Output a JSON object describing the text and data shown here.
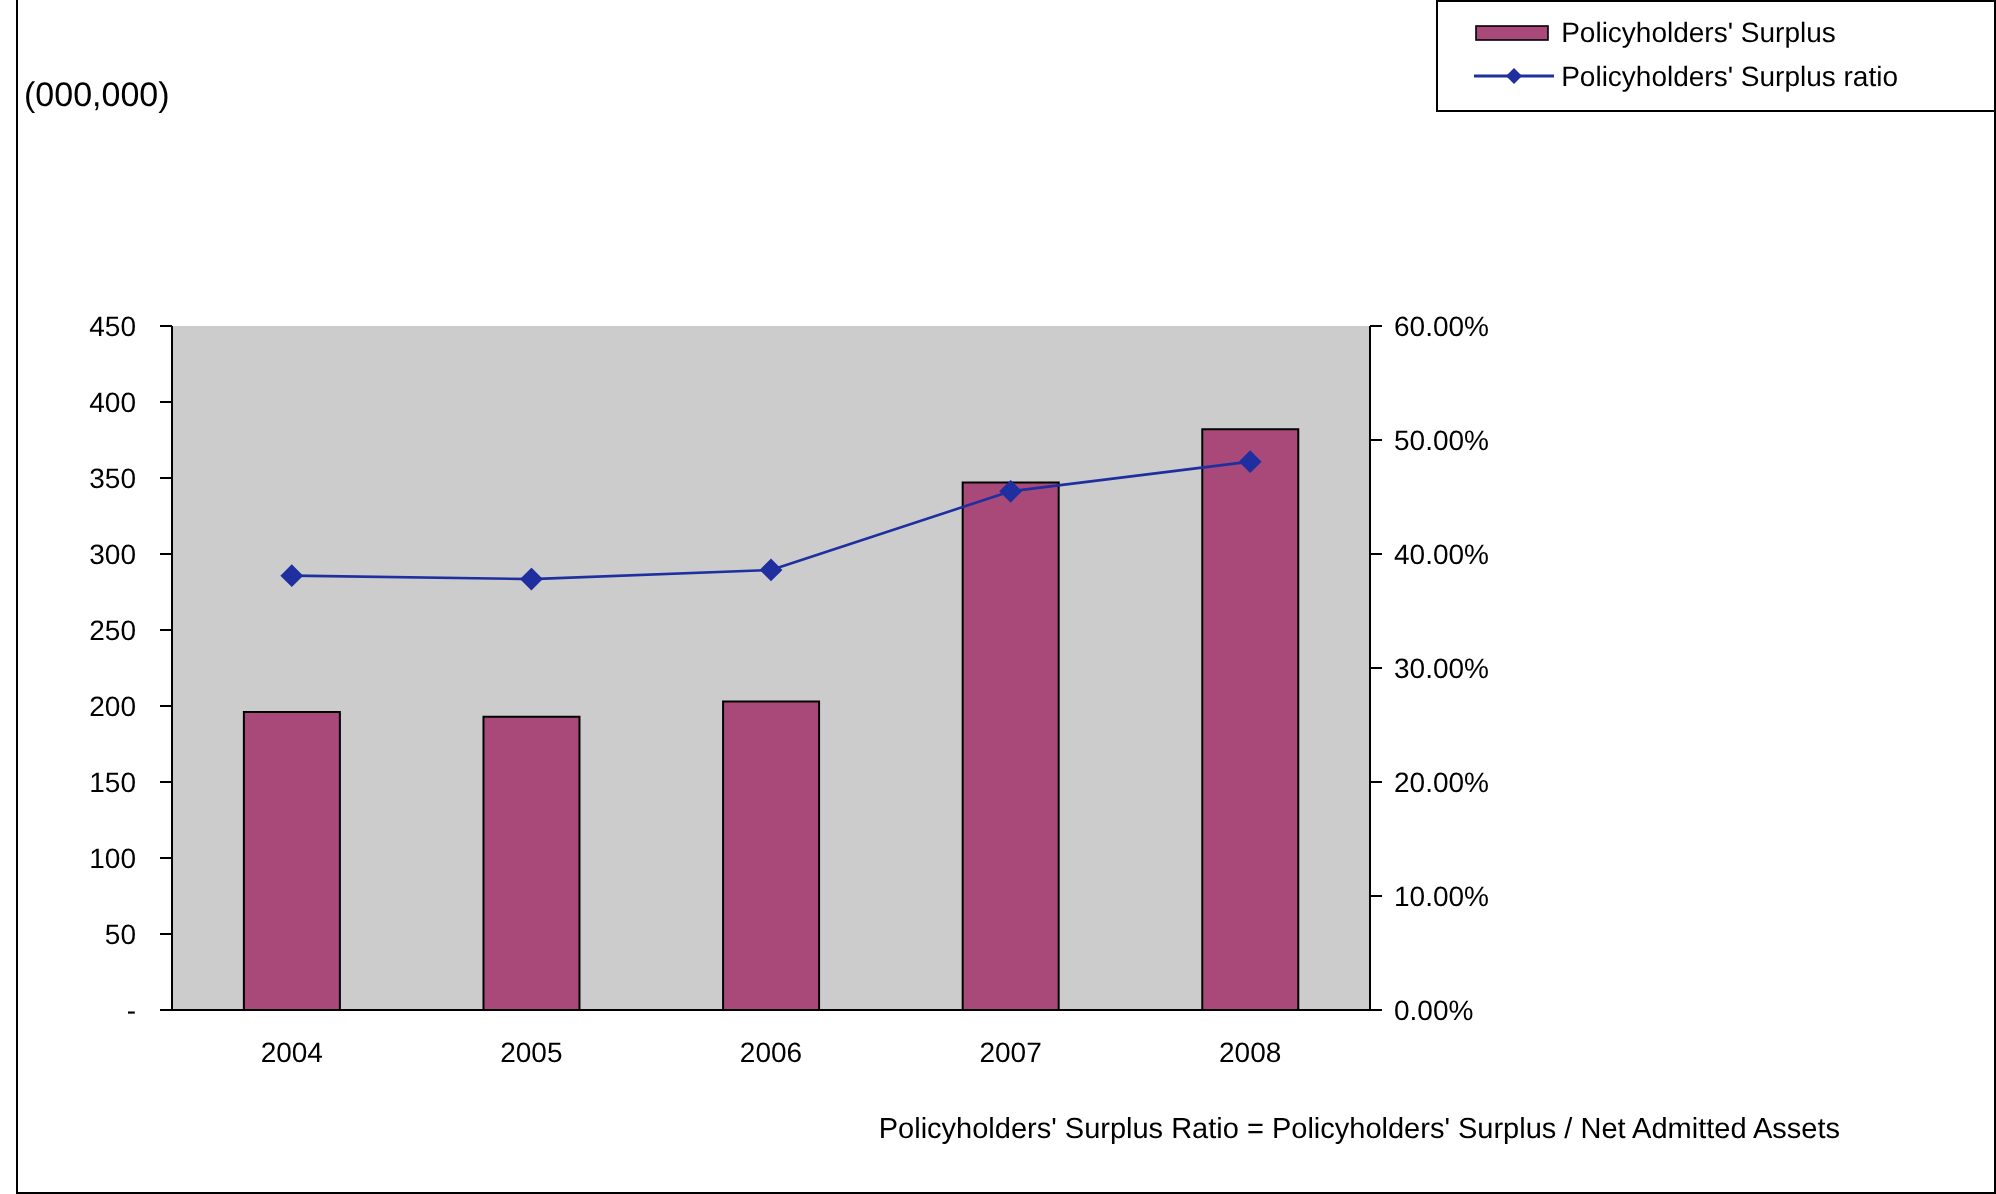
{
  "chart_data": {
    "type": "bar",
    "categories": [
      "2004",
      "2005",
      "2006",
      "2007",
      "2008"
    ],
    "series": [
      {
        "name": "Policyholders' Surplus",
        "color": "#a8497a",
        "values": [
          196,
          193,
          203,
          347,
          382
        ]
      },
      {
        "name": "Policyholders' Surplus ratio",
        "type": "line",
        "axis": "y2",
        "color": "#1f2f9f",
        "marker": "diamond",
        "values": [
          38.1,
          37.8,
          38.6,
          45.5,
          48.1
        ]
      }
    ],
    "ylim": [
      0,
      450
    ],
    "yticks": [
      {
        "value": 0,
        "label": "-"
      },
      50,
      100,
      150,
      200,
      250,
      300,
      350,
      400,
      450
    ],
    "y2lim": [
      0,
      60
    ],
    "y2ticks": [
      {
        "value": 0,
        "label": "0.00%"
      },
      {
        "value": 10,
        "label": "10.00%"
      },
      {
        "value": 20,
        "label": "20.00%"
      },
      {
        "value": 30,
        "label": "30.00%"
      },
      {
        "value": 40,
        "label": "40.00%"
      },
      {
        "value": 50,
        "label": "50.00%"
      },
      {
        "value": 60,
        "label": "60.00%"
      }
    ],
    "legend": "top right",
    "annotations": [
      "(000,000)",
      "Policyholders' Surplus Ratio = Policyholders' Surplus / Net Admitted Assets"
    ]
  }
}
